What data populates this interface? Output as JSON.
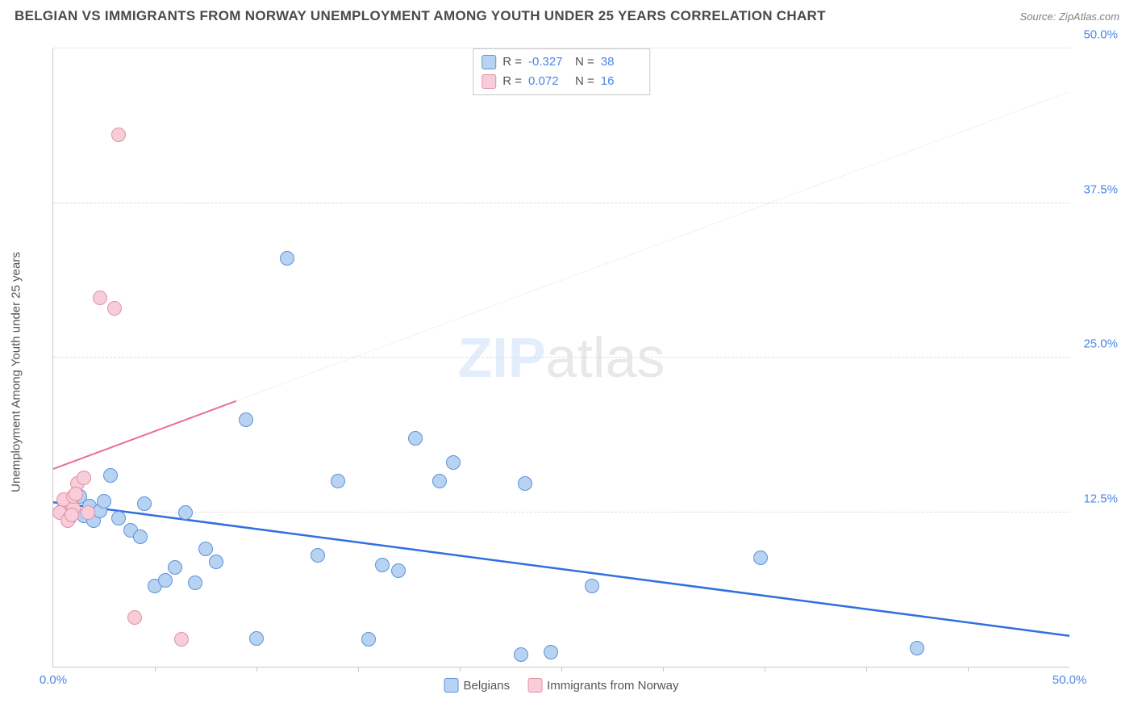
{
  "header": {
    "title": "BELGIAN VS IMMIGRANTS FROM NORWAY UNEMPLOYMENT AMONG YOUTH UNDER 25 YEARS CORRELATION CHART",
    "source_prefix": "Source: ",
    "source_name": "ZipAtlas.com"
  },
  "axes": {
    "y_label": "Unemployment Among Youth under 25 years",
    "x_min": 0,
    "x_max": 50,
    "y_min": 0,
    "y_max": 50,
    "x_ticks": [
      {
        "v": 0,
        "label": "0.0%"
      },
      {
        "v": 50,
        "label": "50.0%"
      }
    ],
    "x_minor_ticks": [
      5,
      10,
      15,
      20,
      25,
      30,
      35,
      40,
      45
    ],
    "y_ticks": [
      {
        "v": 12.5,
        "label": "12.5%"
      },
      {
        "v": 25,
        "label": "25.0%"
      },
      {
        "v": 37.5,
        "label": "37.5%"
      },
      {
        "v": 50,
        "label": "50.0%"
      }
    ]
  },
  "style": {
    "tick_color": "#4a86e8",
    "grid_color": "#dddddd",
    "axis_color": "#c9c9c9",
    "point_radius": 9,
    "point_stroke_w": 1.5
  },
  "series": [
    {
      "id": "belgians",
      "label": "Belgians",
      "fill": "#b8d2f2",
      "stroke": "#5c93d9",
      "trend": {
        "x1": 0,
        "y1": 13.3,
        "x2": 50,
        "y2": 2.5,
        "color": "#2f6fe0",
        "width": 2.5,
        "solid_until_x": 50
      },
      "stats": {
        "R": "-0.327",
        "N": "38"
      },
      "points": [
        [
          0.5,
          12.8
        ],
        [
          0.8,
          13.2
        ],
        [
          1.0,
          12.5
        ],
        [
          1.3,
          13.8
        ],
        [
          1.5,
          12.2
        ],
        [
          1.8,
          13.0
        ],
        [
          2.0,
          11.8
        ],
        [
          2.3,
          12.6
        ],
        [
          2.5,
          13.4
        ],
        [
          2.8,
          15.5
        ],
        [
          3.2,
          12.0
        ],
        [
          3.8,
          11.0
        ],
        [
          4.3,
          10.5
        ],
        [
          4.5,
          13.2
        ],
        [
          5.0,
          6.5
        ],
        [
          5.5,
          7.0
        ],
        [
          6.0,
          8.0
        ],
        [
          6.5,
          12.5
        ],
        [
          7.0,
          6.8
        ],
        [
          7.5,
          9.5
        ],
        [
          8.0,
          8.5
        ],
        [
          9.5,
          20.0
        ],
        [
          10.0,
          2.3
        ],
        [
          11.5,
          33.0
        ],
        [
          13.0,
          9.0
        ],
        [
          14.0,
          15.0
        ],
        [
          15.5,
          2.2
        ],
        [
          16.2,
          8.2
        ],
        [
          17.0,
          7.8
        ],
        [
          17.8,
          18.5
        ],
        [
          19.0,
          15.0
        ],
        [
          19.7,
          16.5
        ],
        [
          23.0,
          1.0
        ],
        [
          23.2,
          14.8
        ],
        [
          24.5,
          1.2
        ],
        [
          26.5,
          6.5
        ],
        [
          34.8,
          8.8
        ],
        [
          42.5,
          1.5
        ]
      ]
    },
    {
      "id": "norway",
      "label": "Immigrants from Norway",
      "fill": "#f6cdd8",
      "stroke": "#e490a5",
      "trend": {
        "x1": 0,
        "y1": 16.0,
        "x2": 50,
        "y2": 46.5,
        "color": "#e86f8f",
        "width": 2,
        "solid_until_x": 9
      },
      "stats": {
        "R": "0.072",
        "N": "16"
      },
      "points": [
        [
          0.3,
          12.5
        ],
        [
          0.5,
          13.5
        ],
        [
          0.8,
          12.0
        ],
        [
          1.0,
          12.8
        ],
        [
          1.2,
          14.8
        ],
        [
          1.5,
          15.3
        ],
        [
          1.0,
          13.8
        ],
        [
          0.7,
          11.8
        ],
        [
          0.9,
          12.3
        ],
        [
          1.1,
          14.0
        ],
        [
          1.7,
          12.5
        ],
        [
          2.3,
          29.8
        ],
        [
          3.0,
          29.0
        ],
        [
          3.2,
          43.0
        ],
        [
          4.0,
          4.0
        ],
        [
          6.3,
          2.2
        ]
      ]
    }
  ],
  "watermark": {
    "part1": "ZIP",
    "part2": "atlas"
  },
  "stats_box": {
    "R_label": "R =",
    "N_label": "N ="
  }
}
